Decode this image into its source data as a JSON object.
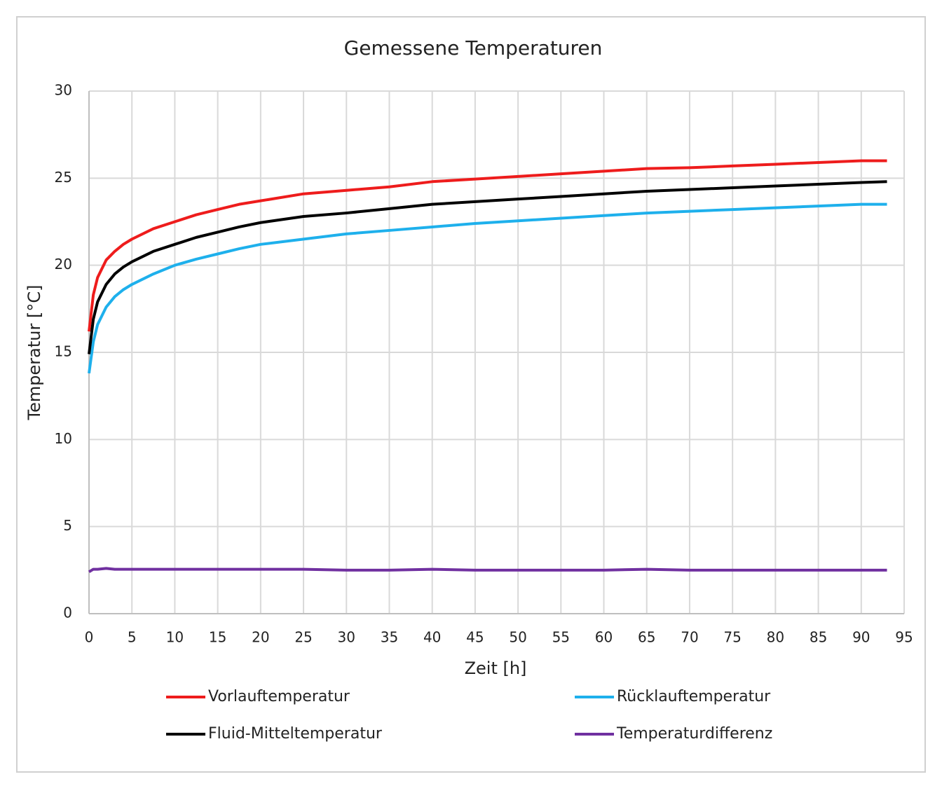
{
  "chart_data": {
    "type": "line",
    "title": "Gemessene Temperaturen",
    "x_label": "Zeit [h]",
    "y_label": "Temperatur [°C]",
    "x": [
      0,
      0.5,
      1,
      2,
      3,
      4,
      5,
      7.5,
      10,
      12.5,
      15,
      17.5,
      20,
      25,
      30,
      35,
      40,
      45,
      50,
      55,
      60,
      65,
      70,
      75,
      80,
      85,
      90,
      93
    ],
    "series": [
      {
        "name": "Vorlauftemperatur",
        "color": "#ee1c1c",
        "values": [
          16.2,
          18.3,
          19.3,
          20.3,
          20.8,
          21.2,
          21.5,
          22.1,
          22.5,
          22.9,
          23.2,
          23.5,
          23.7,
          24.1,
          24.3,
          24.5,
          24.8,
          24.95,
          25.1,
          25.25,
          25.4,
          25.55,
          25.6,
          25.7,
          25.8,
          25.9,
          26.0,
          26.0
        ]
      },
      {
        "name": "Rücklauftemperatur",
        "color": "#1eb0ec",
        "values": [
          13.8,
          15.6,
          16.6,
          17.6,
          18.2,
          18.6,
          18.9,
          19.5,
          20.0,
          20.35,
          20.65,
          20.95,
          21.2,
          21.5,
          21.8,
          22.0,
          22.2,
          22.4,
          22.55,
          22.7,
          22.85,
          23.0,
          23.1,
          23.2,
          23.3,
          23.4,
          23.5,
          23.5
        ]
      },
      {
        "name": "Fluid-Mitteltemperatur",
        "color": "#000000",
        "values": [
          14.9,
          16.9,
          17.9,
          18.9,
          19.5,
          19.9,
          20.2,
          20.8,
          21.2,
          21.6,
          21.9,
          22.2,
          22.45,
          22.8,
          23.0,
          23.25,
          23.5,
          23.65,
          23.8,
          23.95,
          24.1,
          24.25,
          24.35,
          24.45,
          24.55,
          24.65,
          24.75,
          24.8
        ]
      },
      {
        "name": "Temperaturdifferenz",
        "color": "#7030a0",
        "values": [
          2.4,
          2.55,
          2.55,
          2.6,
          2.55,
          2.55,
          2.55,
          2.55,
          2.55,
          2.55,
          2.55,
          2.55,
          2.55,
          2.55,
          2.5,
          2.5,
          2.55,
          2.5,
          2.5,
          2.5,
          2.5,
          2.55,
          2.5,
          2.5,
          2.5,
          2.5,
          2.5,
          2.5
        ]
      }
    ],
    "xlim": [
      0,
      95
    ],
    "xticks": [
      0,
      5,
      10,
      15,
      20,
      25,
      30,
      35,
      40,
      45,
      50,
      55,
      60,
      65,
      70,
      75,
      80,
      85,
      90,
      95
    ],
    "ylim": [
      0,
      30
    ],
    "yticks": [
      0,
      5,
      10,
      15,
      20,
      25,
      30
    ],
    "grid": true
  }
}
